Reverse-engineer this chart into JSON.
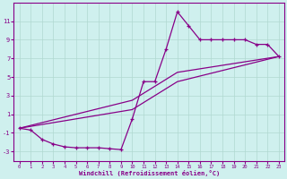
{
  "xlabel": "Windchill (Refroidissement éolien,°C)",
  "bg_color": "#cff0ee",
  "grid_color": "#b0d8d0",
  "line_color": "#880088",
  "xlim": [
    -0.5,
    23.5
  ],
  "ylim": [
    -4,
    13
  ],
  "yticks": [
    -3,
    -1,
    1,
    3,
    5,
    7,
    9,
    11
  ],
  "xticks": [
    0,
    1,
    2,
    3,
    4,
    5,
    6,
    7,
    8,
    9,
    10,
    11,
    12,
    13,
    14,
    15,
    16,
    17,
    18,
    19,
    20,
    21,
    22,
    23
  ],
  "series": [
    {
      "x": [
        0,
        1,
        2,
        3,
        4,
        5,
        6,
        7,
        8,
        9,
        10,
        11,
        12,
        13,
        14,
        15,
        16,
        17,
        18,
        19,
        20,
        21,
        22,
        23
      ],
      "y": [
        -0.5,
        -0.7,
        -1.7,
        -2.2,
        -2.5,
        -2.6,
        -2.6,
        -2.6,
        -2.7,
        -2.8,
        0.5,
        4.5,
        4.5,
        8.0,
        12.0,
        10.5,
        9.0,
        9.0,
        9.0,
        9.0,
        9.0,
        8.5,
        8.5,
        7.2
      ]
    },
    {
      "x": [
        0,
        10,
        14,
        23
      ],
      "y": [
        -0.5,
        1.5,
        4.5,
        7.2
      ]
    },
    {
      "x": [
        0,
        10,
        14,
        23
      ],
      "y": [
        -0.5,
        2.5,
        5.5,
        7.2
      ]
    }
  ]
}
